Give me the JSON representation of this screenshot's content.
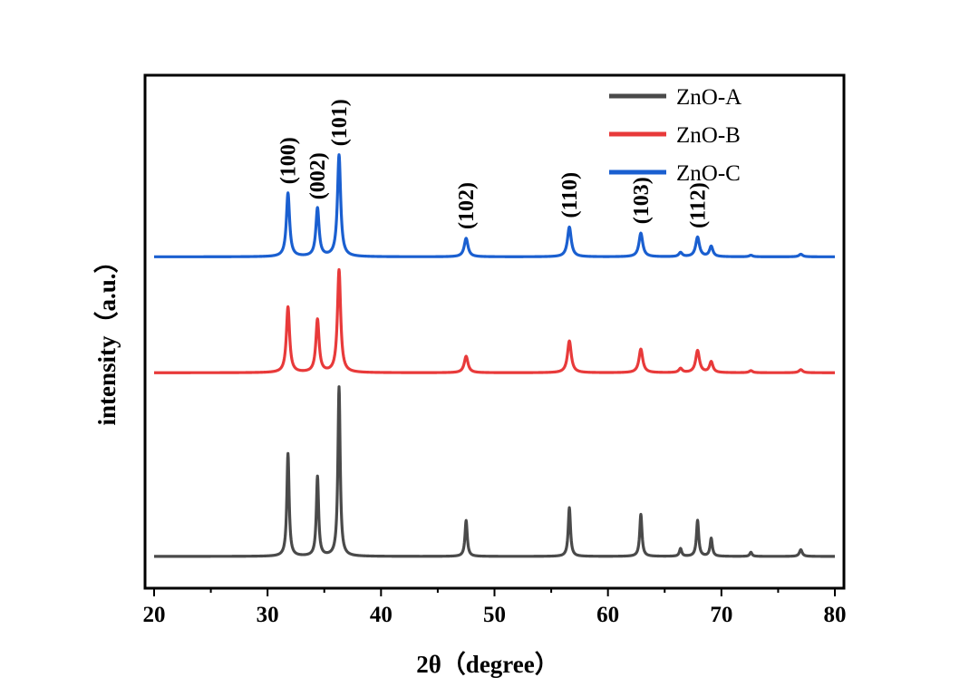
{
  "chart_data": {
    "type": "line",
    "title": "",
    "xlabel": "2θ（degree）",
    "ylabel": "intensity（a.u.）",
    "xlim": [
      20,
      80
    ],
    "ylim": [
      0,
      1
    ],
    "xticks": [
      "20",
      "30",
      "40",
      "50",
      "60",
      "70",
      "80"
    ],
    "grid": false,
    "legend_position": "top-right",
    "series": [
      {
        "name": "ZnO-A",
        "color": "#4a4a4a",
        "baseline": 0.062,
        "peaks": [
          {
            "x": 31.8,
            "height": 0.2,
            "width": 0.12
          },
          {
            "x": 34.4,
            "height": 0.155,
            "width": 0.12
          },
          {
            "x": 36.3,
            "height": 0.33,
            "width": 0.12
          },
          {
            "x": 47.5,
            "height": 0.07,
            "width": 0.12
          },
          {
            "x": 56.6,
            "height": 0.095,
            "width": 0.12
          },
          {
            "x": 62.9,
            "height": 0.082,
            "width": 0.12
          },
          {
            "x": 66.4,
            "height": 0.015,
            "width": 0.12
          },
          {
            "x": 67.9,
            "height": 0.07,
            "width": 0.12
          },
          {
            "x": 69.1,
            "height": 0.035,
            "width": 0.12
          },
          {
            "x": 72.6,
            "height": 0.008,
            "width": 0.12
          },
          {
            "x": 77.0,
            "height": 0.013,
            "width": 0.15
          }
        ]
      },
      {
        "name": "ZnO-B",
        "color": "#e83a3a",
        "baseline": 0.42,
        "peaks": [
          {
            "x": 31.8,
            "height": 0.128,
            "width": 0.17
          },
          {
            "x": 34.4,
            "height": 0.103,
            "width": 0.17
          },
          {
            "x": 36.3,
            "height": 0.2,
            "width": 0.17
          },
          {
            "x": 47.5,
            "height": 0.032,
            "width": 0.2
          },
          {
            "x": 56.6,
            "height": 0.062,
            "width": 0.2
          },
          {
            "x": 62.9,
            "height": 0.046,
            "width": 0.2
          },
          {
            "x": 66.4,
            "height": 0.008,
            "width": 0.18
          },
          {
            "x": 67.9,
            "height": 0.043,
            "width": 0.2
          },
          {
            "x": 69.1,
            "height": 0.021,
            "width": 0.18
          },
          {
            "x": 72.6,
            "height": 0.004,
            "width": 0.18
          },
          {
            "x": 77.0,
            "height": 0.006,
            "width": 0.2
          }
        ]
      },
      {
        "name": "ZnO-C",
        "color": "#1a5fd0",
        "baseline": 0.646,
        "peaks": [
          {
            "x": 31.8,
            "height": 0.124,
            "width": 0.17
          },
          {
            "x": 34.4,
            "height": 0.094,
            "width": 0.17
          },
          {
            "x": 36.3,
            "height": 0.198,
            "width": 0.17
          },
          {
            "x": 47.5,
            "height": 0.036,
            "width": 0.2
          },
          {
            "x": 56.6,
            "height": 0.058,
            "width": 0.2
          },
          {
            "x": 62.9,
            "height": 0.046,
            "width": 0.2
          },
          {
            "x": 66.4,
            "height": 0.008,
            "width": 0.18
          },
          {
            "x": 67.9,
            "height": 0.038,
            "width": 0.2
          },
          {
            "x": 69.1,
            "height": 0.02,
            "width": 0.18
          },
          {
            "x": 72.6,
            "height": 0.003,
            "width": 0.18
          },
          {
            "x": 77.0,
            "height": 0.005,
            "width": 0.2
          }
        ]
      }
    ],
    "annotations": [
      {
        "text": "(100)",
        "x": 31.8
      },
      {
        "text": "(002)",
        "x": 34.4
      },
      {
        "text": "(101)",
        "x": 36.3
      },
      {
        "text": "(102)",
        "x": 47.5
      },
      {
        "text": "(110)",
        "x": 56.6
      },
      {
        "text": "(103)",
        "x": 62.9
      },
      {
        "text": "(112)",
        "x": 67.9
      }
    ]
  }
}
